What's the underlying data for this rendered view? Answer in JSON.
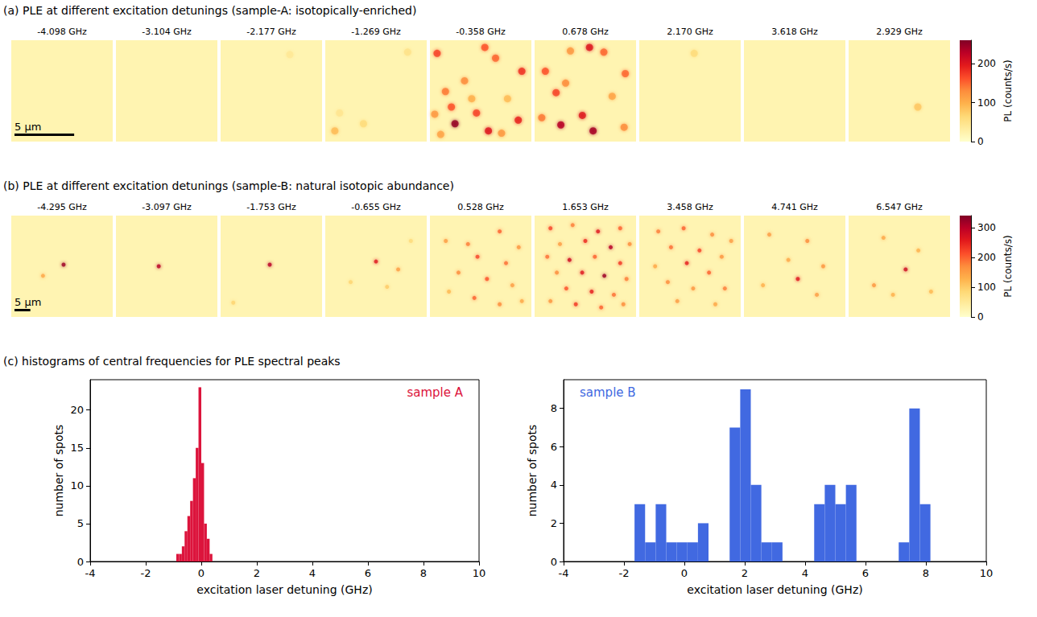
{
  "chart_data": [
    {
      "type": "image_map",
      "title": "(a) PLE at different excitation detunings (sample-A: isotopically-enriched)",
      "extent": [
        0,
        8.5
      ],
      "background": 20,
      "scale_bar": {
        "label": "5 µm",
        "length": 5
      },
      "colorbar": {
        "label": "PL (counts/s)",
        "range": [
          0,
          260
        ],
        "ticks": [
          0,
          100,
          200
        ]
      },
      "panels": [
        {
          "title": "-4.098 GHz",
          "spots": []
        },
        {
          "title": "-3.104 GHz",
          "spots": []
        },
        {
          "title": "-2.177 GHz",
          "spots": [
            [
              5.8,
              1.2,
              40
            ]
          ]
        },
        {
          "title": "-1.269 GHz",
          "spots": [
            [
              0.8,
              7.6,
              90
            ],
            [
              3.2,
              7.0,
              60
            ],
            [
              6.9,
              1.0,
              50
            ],
            [
              1.2,
              6.1,
              45
            ]
          ]
        },
        {
          "title": "-0.358 GHz",
          "spots": [
            [
              0.6,
              1.1,
              170
            ],
            [
              4.6,
              0.6,
              160
            ],
            [
              5.5,
              1.5,
              150
            ],
            [
              2.9,
              3.4,
              130
            ],
            [
              7.7,
              2.6,
              180
            ],
            [
              1.3,
              4.3,
              140
            ],
            [
              0.4,
              6.2,
              120
            ],
            [
              3.9,
              6.1,
              170
            ],
            [
              2.1,
              7.0,
              250
            ],
            [
              4.9,
              7.6,
              200
            ],
            [
              7.4,
              6.7,
              190
            ],
            [
              0.9,
              7.9,
              110
            ],
            [
              3.5,
              4.9,
              100
            ],
            [
              6.5,
              4.9,
              90
            ],
            [
              6.0,
              7.8,
              120
            ],
            [
              1.8,
              5.6,
              160
            ]
          ]
        },
        {
          "title": "0.678 GHz",
          "spots": [
            [
              4.6,
              0.6,
              200
            ],
            [
              5.8,
              1.0,
              150
            ],
            [
              3.0,
              0.9,
              120
            ],
            [
              0.9,
              2.6,
              160
            ],
            [
              2.6,
              3.6,
              130
            ],
            [
              7.6,
              2.8,
              150
            ],
            [
              1.8,
              4.4,
              170
            ],
            [
              6.5,
              4.7,
              110
            ],
            [
              4.0,
              6.3,
              200
            ],
            [
              2.2,
              7.1,
              230
            ],
            [
              4.9,
              7.6,
              240
            ],
            [
              7.5,
              7.3,
              130
            ],
            [
              0.6,
              6.5,
              140
            ]
          ]
        },
        {
          "title": "2.170 GHz",
          "spots": [
            [
              4.6,
              1.1,
              60
            ]
          ]
        },
        {
          "title": "3.618 GHz",
          "spots": []
        },
        {
          "title": "2.929 GHz",
          "spots": [
            [
              5.8,
              5.6,
              80
            ]
          ]
        }
      ]
    },
    {
      "type": "image_map",
      "title": "(b) PLE at different excitation detunings (sample-B: natural isotopic abundance)",
      "extent": [
        0,
        32
      ],
      "background": 25,
      "scale_bar": {
        "label": "5 µm",
        "length": 5
      },
      "colorbar": {
        "label": "PL (counts/s)",
        "range": [
          0,
          340
        ],
        "ticks": [
          0,
          100,
          200,
          300
        ]
      },
      "panels": [
        {
          "title": "-4.295 GHz",
          "spots": [
            [
              16.5,
              15.5,
              320
            ],
            [
              10,
              19,
              140
            ]
          ]
        },
        {
          "title": "-3.097 GHz",
          "spots": [
            [
              13.5,
              16,
              300
            ]
          ]
        },
        {
          "title": "-1.753 GHz",
          "spots": [
            [
              15.5,
              15.5,
              300
            ],
            [
              4,
              27.5,
              90
            ]
          ]
        },
        {
          "title": "-0.655 GHz",
          "spots": [
            [
              16,
              14.5,
              260
            ],
            [
              23,
              17,
              150
            ],
            [
              8,
              21,
              90
            ],
            [
              19.5,
              22.5,
              100
            ],
            [
              27,
              8,
              80
            ]
          ]
        },
        {
          "title": "0.528 GHz",
          "spots": [
            [
              22,
              5,
              200
            ],
            [
              5,
              8,
              150
            ],
            [
              12,
              9,
              180
            ],
            [
              28,
              10,
              160
            ],
            [
              15,
              13,
              220
            ],
            [
              24,
              15,
              190
            ],
            [
              9,
              18,
              170
            ],
            [
              18,
              20,
              210
            ],
            [
              26,
              22,
              150
            ],
            [
              6,
              24,
              120
            ],
            [
              14,
              26,
              200
            ],
            [
              22,
              28,
              170
            ],
            [
              29,
              27,
              140
            ]
          ]
        },
        {
          "title": "1.653 GHz",
          "spots": [
            [
              5,
              4,
              220
            ],
            [
              12,
              3,
              180
            ],
            [
              20,
              5,
              260
            ],
            [
              27,
              4,
              200
            ],
            [
              8,
              9,
              150
            ],
            [
              16,
              8,
              240
            ],
            [
              24,
              10,
              300
            ],
            [
              30,
              9,
              170
            ],
            [
              4,
              13,
              190
            ],
            [
              11,
              14,
              280
            ],
            [
              19,
              13,
              200
            ],
            [
              27,
              15,
              230
            ],
            [
              7,
              18,
              170
            ],
            [
              15,
              18,
              260
            ],
            [
              22,
              19,
              320
            ],
            [
              29,
              20,
              180
            ],
            [
              10,
              23,
              210
            ],
            [
              18,
              24,
              250
            ],
            [
              25,
              25,
              190
            ],
            [
              5,
              27,
              160
            ],
            [
              13,
              28,
              230
            ],
            [
              21,
              29,
              200
            ],
            [
              28,
              28,
              170
            ]
          ]
        },
        {
          "title": "3.458 GHz",
          "spots": [
            [
              6,
              5,
              180
            ],
            [
              14,
              4,
              200
            ],
            [
              23,
              6,
              170
            ],
            [
              29,
              8,
              150
            ],
            [
              10,
              10,
              190
            ],
            [
              19,
              11,
              220
            ],
            [
              26,
              13,
              160
            ],
            [
              5,
              16,
              140
            ],
            [
              15,
              15,
              250
            ],
            [
              22,
              18,
              200
            ],
            [
              9,
              21,
              170
            ],
            [
              17,
              23,
              160
            ],
            [
              27,
              23,
              180
            ],
            [
              12,
              27,
              150
            ],
            [
              24,
              28,
              140
            ]
          ]
        },
        {
          "title": "4.741 GHz",
          "spots": [
            [
              8,
              6,
              150
            ],
            [
              20,
              8,
              170
            ],
            [
              14,
              14,
              140
            ],
            [
              25,
              16,
              160
            ],
            [
              17,
              20,
              260
            ],
            [
              6,
              22,
              130
            ],
            [
              23,
              25,
              150
            ]
          ]
        },
        {
          "title": "6.547 GHz",
          "spots": [
            [
              11,
              7,
              140
            ],
            [
              22,
              11,
              130
            ],
            [
              18,
              17,
              280
            ],
            [
              8,
              22,
              160
            ],
            [
              14,
              25,
              130
            ],
            [
              26,
              24,
              120
            ]
          ]
        }
      ]
    },
    {
      "type": "histogram_group",
      "title": "(c) histograms of central frequencies for PLE spectral peaks",
      "panels": [
        {
          "type": "histogram",
          "label": "sample A",
          "color": "#dc143c",
          "x_label": "excitation laser detuning (GHz)",
          "y_label": "number of spots",
          "bins": [
            -0.9,
            -0.8,
            -0.7,
            -0.6,
            -0.5,
            -0.4,
            -0.3,
            -0.2,
            -0.1,
            0.0,
            0.1,
            0.2,
            0.3,
            0.4
          ],
          "counts": [
            1,
            1,
            2,
            4,
            6,
            8,
            11,
            15,
            23,
            13,
            5,
            3,
            1
          ],
          "xlim": [
            -4,
            10
          ],
          "xticks": [
            -4,
            -2,
            0,
            2,
            4,
            6,
            8,
            10
          ],
          "ylim": [
            0,
            24
          ],
          "yticks": [
            0,
            5,
            10,
            15,
            20
          ]
        },
        {
          "type": "histogram",
          "label": "sample B",
          "color": "#4169e1",
          "x_label": "excitation laser detuning (GHz)",
          "y_label": "number of spots",
          "bins": [
            -1.65,
            -1.3,
            -0.95,
            -0.6,
            -0.25,
            0.1,
            0.45,
            0.8,
            1.15,
            1.5,
            1.85,
            2.2,
            2.55,
            2.9,
            3.25,
            3.6,
            3.95,
            4.3,
            4.65,
            5.0,
            5.35,
            5.7,
            6.05,
            6.4,
            6.75,
            7.1,
            7.45,
            7.8,
            8.15
          ],
          "counts": [
            3,
            1,
            3,
            1,
            1,
            1,
            2,
            0,
            0,
            7,
            9,
            4,
            1,
            1,
            0,
            0,
            0,
            3,
            4,
            3,
            4,
            0,
            0,
            0,
            0,
            1,
            8,
            3
          ],
          "xlim": [
            -4,
            10
          ],
          "xticks": [
            -4,
            -2,
            0,
            2,
            4,
            6,
            8,
            10
          ],
          "ylim": [
            0,
            9.5
          ],
          "yticks": [
            0,
            2,
            4,
            6,
            8
          ]
        }
      ]
    }
  ]
}
